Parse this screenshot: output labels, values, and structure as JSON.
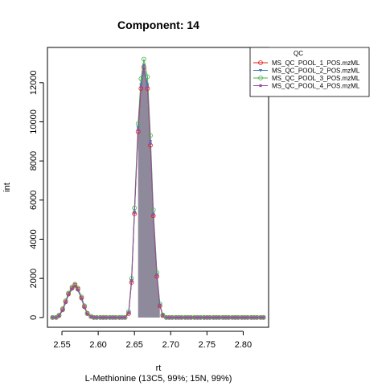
{
  "chart_data": {
    "type": "line",
    "title": "Component: 14",
    "xlabel": "rt",
    "ylabel": "int",
    "subtitle": "L-Methionine (13C5, 99%; 15N, 99%)",
    "xlim": [
      2.53,
      2.835
    ],
    "ylim": [
      -500,
      13800
    ],
    "x_ticks": [
      2.55,
      2.6,
      2.65,
      2.7,
      2.75,
      2.8
    ],
    "x_tick_labels": [
      "2.55",
      "2.60",
      "2.65",
      "2.70",
      "2.75",
      "2.80"
    ],
    "y_ticks": [
      0,
      2000,
      4000,
      6000,
      8000,
      10000,
      12000
    ],
    "y_tick_labels": [
      "0",
      "2000",
      "4000",
      "6000",
      "8000",
      "10000",
      "12000"
    ],
    "grid": false,
    "legend": {
      "title": "QC",
      "position": "top-right, outside plot"
    },
    "shaded_peak": {
      "from": 2.652,
      "to": 2.685,
      "color": "#8e8a9c"
    },
    "series": [
      {
        "name": "MS_QC_POOL_1_POS.mzML",
        "color": "#e41a1c",
        "marker": "circle-open",
        "x": [
          2.537,
          2.542,
          2.546,
          2.551,
          2.555,
          2.559,
          2.564,
          2.568,
          2.572,
          2.577,
          2.581,
          2.585,
          2.59,
          2.594,
          2.598,
          2.603,
          2.607,
          2.611,
          2.616,
          2.62,
          2.624,
          2.629,
          2.633,
          2.637,
          2.642,
          2.646,
          2.65,
          2.655,
          2.659,
          2.663,
          2.668,
          2.672,
          2.676,
          2.681,
          2.685,
          2.689,
          2.694,
          2.698,
          2.702,
          2.707,
          2.711,
          2.715,
          2.72,
          2.724,
          2.728,
          2.733,
          2.737,
          2.741,
          2.746,
          2.75,
          2.754,
          2.759,
          2.763,
          2.767,
          2.772,
          2.776,
          2.78,
          2.785,
          2.789,
          2.793,
          2.798,
          2.802,
          2.806,
          2.811,
          2.815,
          2.819,
          2.824,
          2.828
        ],
        "y": [
          0,
          0,
          100,
          400,
          800,
          1200,
          1500,
          1650,
          1450,
          1000,
          550,
          200,
          50,
          0,
          0,
          0,
          0,
          0,
          0,
          0,
          0,
          0,
          0,
          0,
          200,
          1800,
          5300,
          9500,
          11700,
          12800,
          11700,
          8800,
          5200,
          2100,
          600,
          100,
          0,
          0,
          0,
          0,
          0,
          0,
          0,
          0,
          0,
          0,
          0,
          0,
          0,
          0,
          0,
          0,
          0,
          0,
          0,
          0,
          0,
          0,
          0,
          0,
          0,
          0,
          0,
          0,
          0,
          0,
          0,
          0
        ]
      },
      {
        "name": "MS_QC_POOL_2_POS.mzML",
        "color": "#377eb8",
        "marker": "triangle",
        "x": [
          2.537,
          2.542,
          2.546,
          2.551,
          2.555,
          2.559,
          2.564,
          2.568,
          2.572,
          2.577,
          2.581,
          2.585,
          2.59,
          2.594,
          2.598,
          2.603,
          2.607,
          2.611,
          2.616,
          2.62,
          2.624,
          2.629,
          2.633,
          2.637,
          2.642,
          2.646,
          2.65,
          2.655,
          2.659,
          2.663,
          2.668,
          2.672,
          2.676,
          2.681,
          2.685,
          2.689,
          2.694,
          2.698,
          2.702,
          2.707,
          2.711,
          2.715,
          2.72,
          2.724,
          2.728,
          2.733,
          2.737,
          2.741,
          2.746,
          2.75,
          2.754,
          2.759,
          2.763,
          2.767,
          2.772,
          2.776,
          2.78,
          2.785,
          2.789,
          2.793,
          2.798,
          2.802,
          2.806,
          2.811,
          2.815,
          2.819,
          2.824,
          2.828
        ],
        "y": [
          0,
          0,
          80,
          350,
          750,
          1150,
          1450,
          1600,
          1400,
          950,
          500,
          180,
          40,
          0,
          0,
          0,
          0,
          0,
          0,
          0,
          0,
          0,
          0,
          0,
          250,
          1900,
          5400,
          9700,
          11900,
          12900,
          11900,
          9000,
          5300,
          2200,
          650,
          120,
          0,
          0,
          0,
          0,
          0,
          0,
          0,
          0,
          0,
          0,
          0,
          0,
          0,
          0,
          0,
          0,
          0,
          0,
          0,
          0,
          0,
          0,
          0,
          0,
          0,
          0,
          0,
          0,
          0,
          0,
          0,
          0
        ]
      },
      {
        "name": "MS_QC_POOL_3_POS.mzML",
        "color": "#4daf4a",
        "marker": "circle-open",
        "x": [
          2.537,
          2.542,
          2.546,
          2.551,
          2.555,
          2.559,
          2.564,
          2.568,
          2.572,
          2.577,
          2.581,
          2.585,
          2.59,
          2.594,
          2.598,
          2.603,
          2.607,
          2.611,
          2.616,
          2.62,
          2.624,
          2.629,
          2.633,
          2.637,
          2.642,
          2.646,
          2.65,
          2.655,
          2.659,
          2.663,
          2.668,
          2.672,
          2.676,
          2.681,
          2.685,
          2.689,
          2.694,
          2.698,
          2.702,
          2.707,
          2.711,
          2.715,
          2.72,
          2.724,
          2.728,
          2.733,
          2.737,
          2.741,
          2.746,
          2.75,
          2.754,
          2.759,
          2.763,
          2.767,
          2.772,
          2.776,
          2.78,
          2.785,
          2.789,
          2.793,
          2.798,
          2.802,
          2.806,
          2.811,
          2.815,
          2.819,
          2.824,
          2.828
        ],
        "y": [
          0,
          0,
          120,
          450,
          850,
          1250,
          1550,
          1700,
          1500,
          1050,
          600,
          220,
          60,
          0,
          0,
          0,
          0,
          0,
          0,
          0,
          0,
          0,
          0,
          0,
          300,
          2000,
          5600,
          9900,
          12200,
          13200,
          12300,
          9300,
          5500,
          2300,
          700,
          130,
          0,
          0,
          0,
          0,
          0,
          0,
          0,
          0,
          0,
          0,
          0,
          0,
          0,
          0,
          0,
          0,
          0,
          0,
          0,
          0,
          0,
          0,
          0,
          0,
          0,
          0,
          0,
          0,
          0,
          0,
          0,
          0
        ]
      },
      {
        "name": "MS_QC_POOL_4_POS.mzML",
        "color": "#984ea3",
        "marker": "square",
        "x": [
          2.537,
          2.542,
          2.546,
          2.551,
          2.555,
          2.559,
          2.564,
          2.568,
          2.572,
          2.577,
          2.581,
          2.585,
          2.59,
          2.594,
          2.598,
          2.603,
          2.607,
          2.611,
          2.616,
          2.62,
          2.624,
          2.629,
          2.633,
          2.637,
          2.642,
          2.646,
          2.65,
          2.655,
          2.659,
          2.663,
          2.668,
          2.672,
          2.676,
          2.681,
          2.685,
          2.689,
          2.694,
          2.698,
          2.702,
          2.707,
          2.711,
          2.715,
          2.72,
          2.724,
          2.728,
          2.733,
          2.737,
          2.741,
          2.746,
          2.75,
          2.754,
          2.759,
          2.763,
          2.767,
          2.772,
          2.776,
          2.78,
          2.785,
          2.789,
          2.793,
          2.798,
          2.802,
          2.806,
          2.811,
          2.815,
          2.819,
          2.824,
          2.828
        ],
        "y": [
          0,
          0,
          90,
          380,
          780,
          1180,
          1480,
          1620,
          1420,
          980,
          520,
          190,
          45,
          0,
          0,
          0,
          0,
          0,
          0,
          0,
          0,
          0,
          0,
          0,
          220,
          1850,
          5350,
          9600,
          11800,
          12600,
          11800,
          8900,
          5250,
          2150,
          620,
          110,
          0,
          0,
          0,
          0,
          0,
          0,
          0,
          0,
          0,
          0,
          0,
          0,
          0,
          0,
          0,
          0,
          0,
          0,
          0,
          0,
          0,
          0,
          0,
          0,
          0,
          0,
          0,
          0,
          0,
          0,
          0,
          0
        ]
      }
    ]
  }
}
